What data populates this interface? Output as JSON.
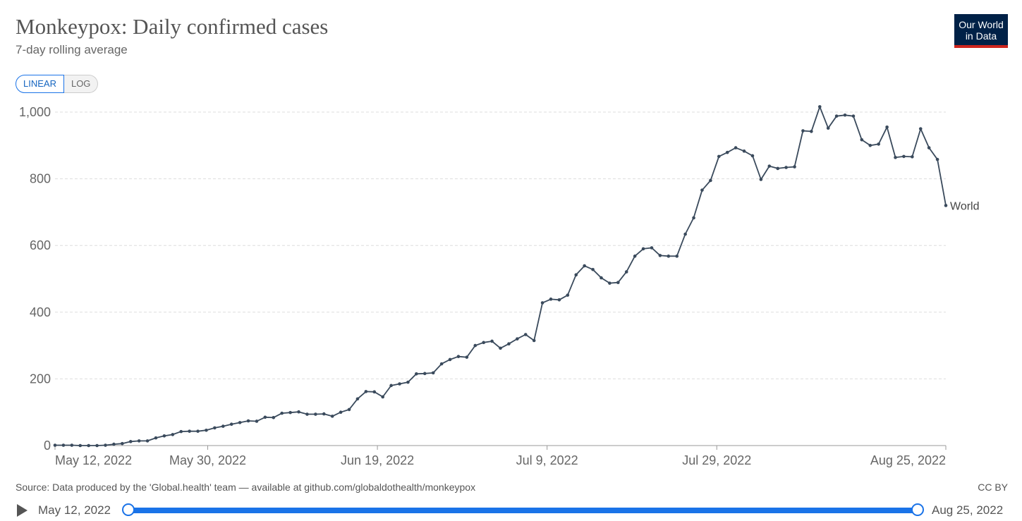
{
  "header": {
    "title": "Monkeypox: Daily confirmed cases",
    "subtitle": "7-day rolling average",
    "logo_line1": "Our World",
    "logo_line2": "in Data"
  },
  "scale_toggle": {
    "linear": "LINEAR",
    "log": "LOG",
    "selected": "LINEAR"
  },
  "chart_data": {
    "type": "line",
    "title": "Monkeypox: Daily confirmed cases",
    "subtitle": "7-day rolling average",
    "x_start": "2022-05-12",
    "x_end": "2022-08-25",
    "ylim": [
      0,
      1000
    ],
    "yticks": [
      0,
      200,
      400,
      600,
      800,
      1000
    ],
    "ytick_labels": [
      "0",
      "200",
      "400",
      "600",
      "800",
      "1,000"
    ],
    "xtick_labels": [
      "May 12, 2022",
      "May 30, 2022",
      "Jun 19, 2022",
      "Jul 9, 2022",
      "Jul 29, 2022",
      "Aug 25, 2022"
    ],
    "xtick_dates": [
      "2022-05-12",
      "2022-05-30",
      "2022-06-19",
      "2022-07-09",
      "2022-07-29",
      "2022-08-25"
    ],
    "grid": true,
    "legend": "end-label",
    "series": [
      {
        "name": "World",
        "color": "#3a4a5c",
        "values": [
          1,
          1,
          1,
          0,
          0,
          0,
          1,
          4,
          6,
          12,
          14,
          14,
          23,
          29,
          33,
          42,
          43,
          43,
          46,
          53,
          58,
          64,
          69,
          74,
          73,
          85,
          84,
          97,
          99,
          101,
          94,
          94,
          95,
          88,
          100,
          108,
          140,
          162,
          161,
          146,
          180,
          185,
          190,
          215,
          216,
          218,
          245,
          258,
          267,
          265,
          300,
          309,
          313,
          292,
          305,
          320,
          333,
          315,
          428,
          439,
          437,
          451,
          512,
          539,
          528,
          503,
          487,
          489,
          521,
          568,
          590,
          593,
          570,
          568,
          568,
          634,
          683,
          766,
          795,
          867,
          879,
          893,
          883,
          869,
          798,
          838,
          831,
          834,
          836,
          944,
          942,
          1016,
          952,
          988,
          991,
          988,
          917,
          900,
          904,
          955,
          864,
          867,
          866,
          950,
          893,
          858,
          720
        ]
      }
    ]
  },
  "footer": {
    "source": "Source: Data produced by the 'Global.health' team — available at github.com/globaldothealth/monkeypox",
    "license": "CC BY"
  },
  "timeline": {
    "start_label": "May 12, 2022",
    "end_label": "Aug 25, 2022"
  }
}
